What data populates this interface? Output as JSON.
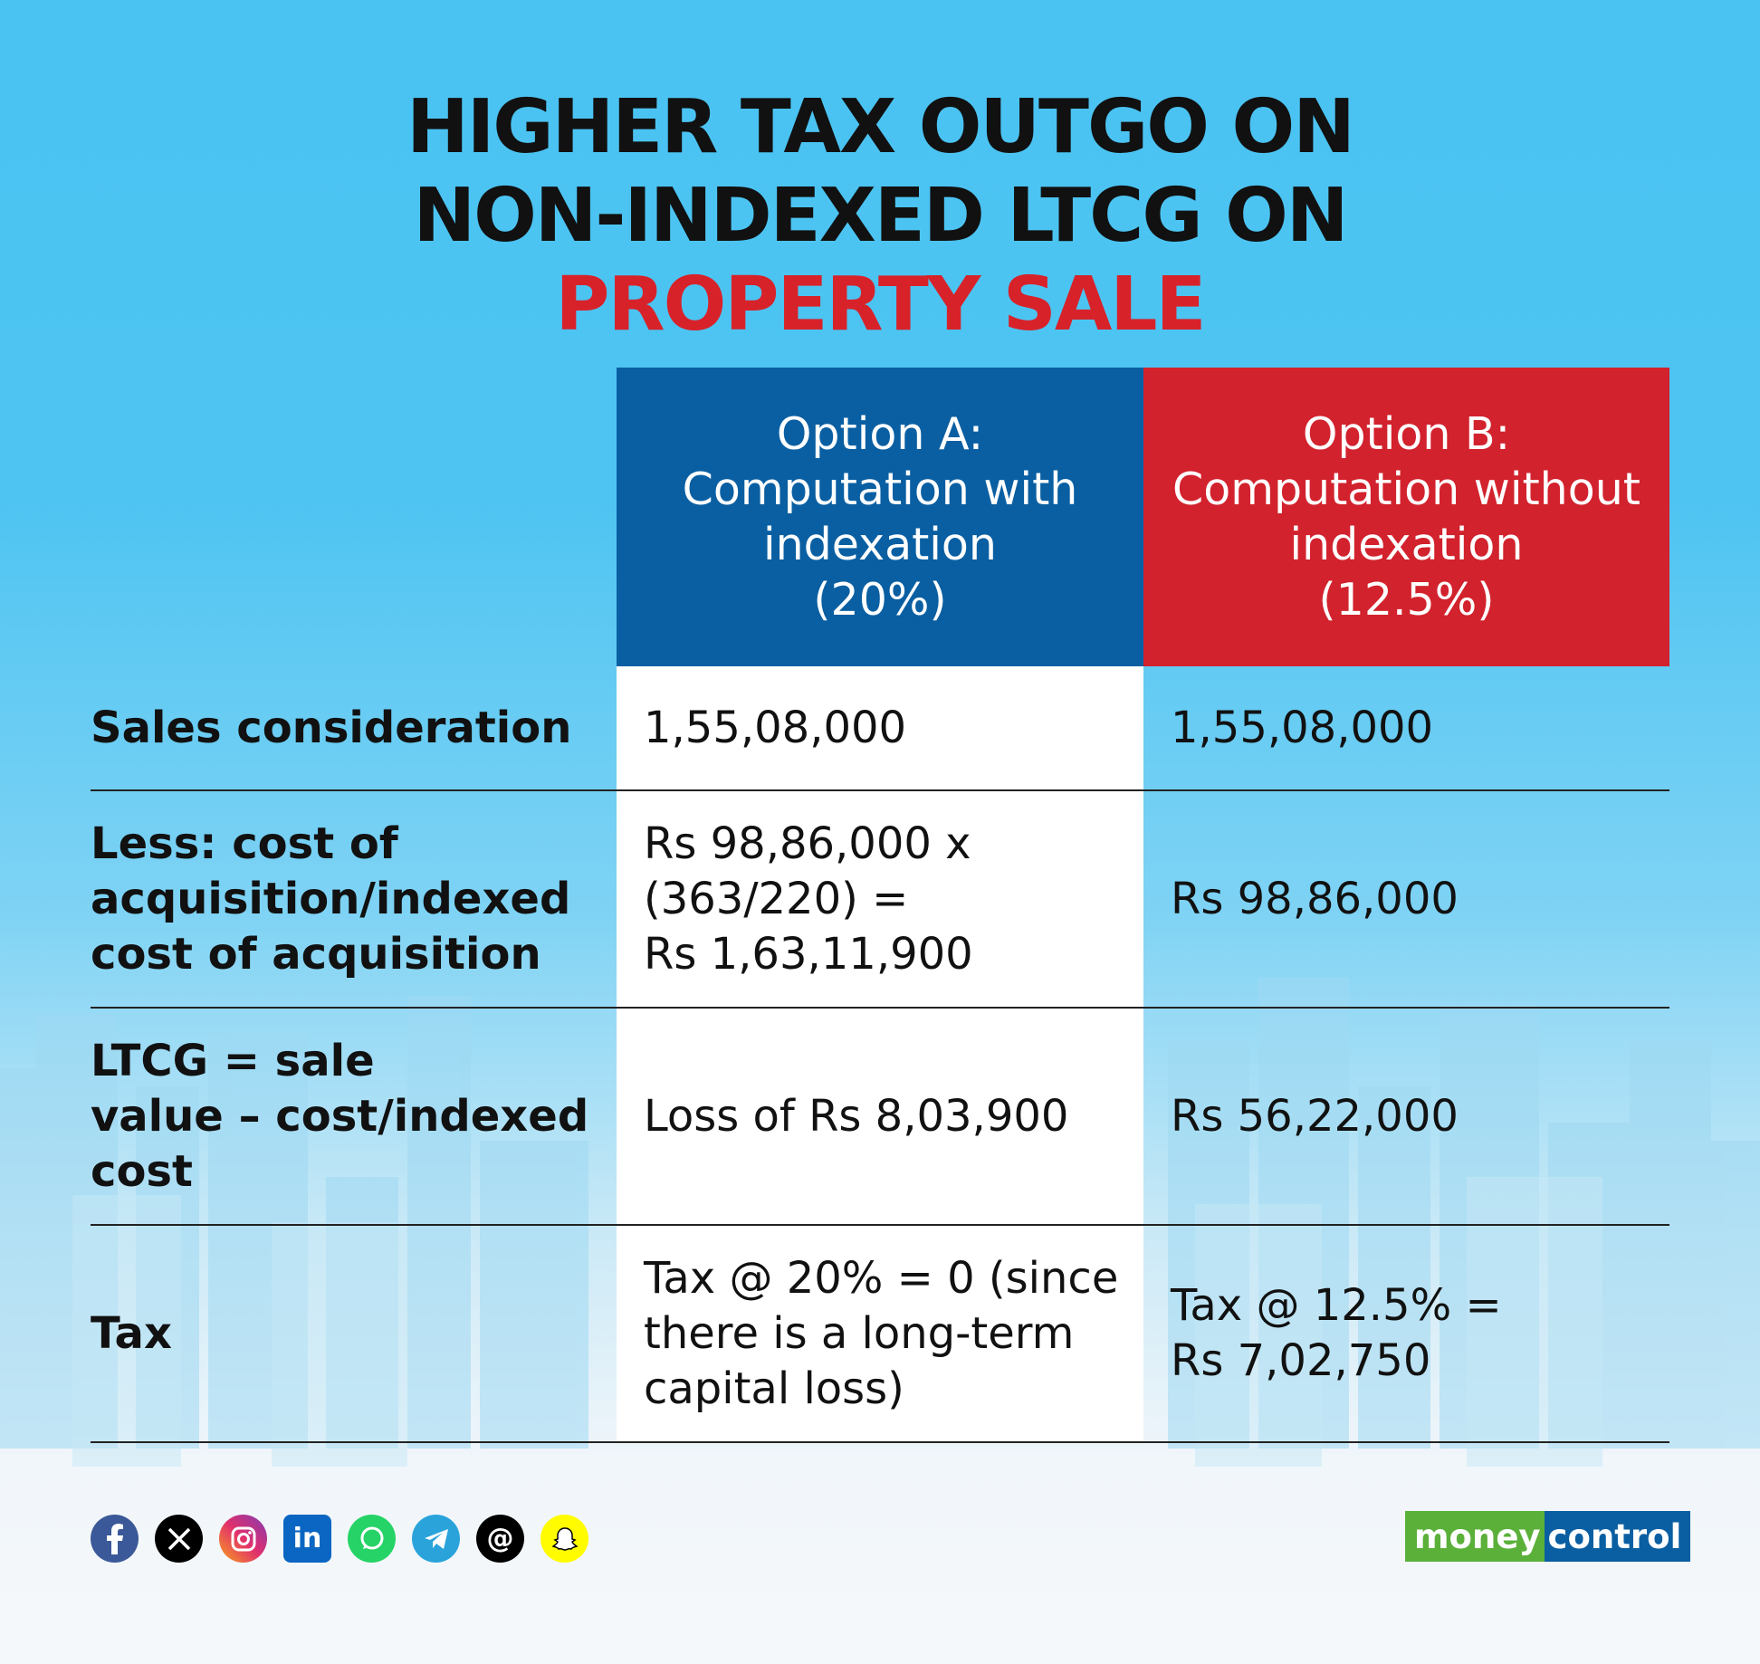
{
  "title": {
    "line1": "HIGHER TAX OUTGO ON",
    "line2": "NON-INDEXED LTCG ON",
    "line3": "PROPERTY SALE"
  },
  "columns": {
    "option_a": "Option A:\nComputation with\nindexation\n(20%)",
    "option_b": "Option B:\nComputation without\nindexation\n(12.5%)"
  },
  "rows": [
    {
      "label": "Sales consideration",
      "a": "1,55,08,000",
      "b": "1,55,08,000"
    },
    {
      "label": "Less: cost of\nacquisition/indexed\ncost of acquisition",
      "a": "Rs 98,86,000 x\n(363/220) =\nRs 1,63,11,900",
      "b": "Rs 98,86,000"
    },
    {
      "label": "LTCG = sale\nvalue – cost/indexed\ncost",
      "a": "Loss of Rs 8,03,900",
      "b": "Rs 56,22,000"
    },
    {
      "label": "Tax",
      "a": "Tax @ 20% = 0 (since\nthere is a long-term\ncapital loss)",
      "b": "Tax @ 12.5% =\nRs 7,02,750"
    }
  ],
  "social_icons": [
    "facebook-icon",
    "x-icon",
    "instagram-icon",
    "linkedin-icon",
    "whatsapp-icon",
    "telegram-icon",
    "threads-icon",
    "snapchat-icon"
  ],
  "brand": {
    "part1": "money",
    "part2": "control"
  },
  "colors": {
    "background": "#4ac3f2",
    "option_a": "#0a5fa2",
    "option_b": "#d2222d",
    "accent_red": "#d8222a"
  }
}
